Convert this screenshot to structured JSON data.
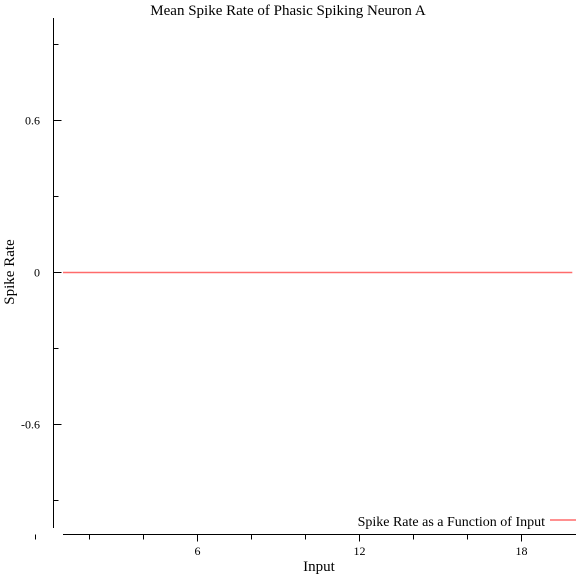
{
  "chart_data": {
    "type": "line",
    "title": "Mean Spike Rate of Phasic Spiking Neuron A",
    "xlabel": "Input",
    "ylabel": "Spike Rate",
    "xlim": [
      -1.3,
      19.9
    ],
    "ylim": [
      -1.0,
      0.99
    ],
    "x_ticks_labeled": [
      6,
      12,
      18
    ],
    "x_ticks_minor": [
      0,
      2,
      4,
      8,
      10,
      14,
      16
    ],
    "x_tick_labels": [
      "6",
      "12",
      "18"
    ],
    "y_ticks_labeled": [
      0.6,
      0,
      -0.6
    ],
    "y_ticks_minor": [
      0.9,
      0.3,
      -0.3,
      -0.9
    ],
    "y_tick_labels": [
      "0.6",
      "0",
      "-0.6"
    ],
    "grid": false,
    "legend_position": "bottom-right",
    "series": [
      {
        "name": "Spike Rate as a Function of Input",
        "color": "#ff6b6b",
        "x": [
          -0.9,
          19.9
        ],
        "y": [
          0,
          0
        ]
      }
    ]
  }
}
